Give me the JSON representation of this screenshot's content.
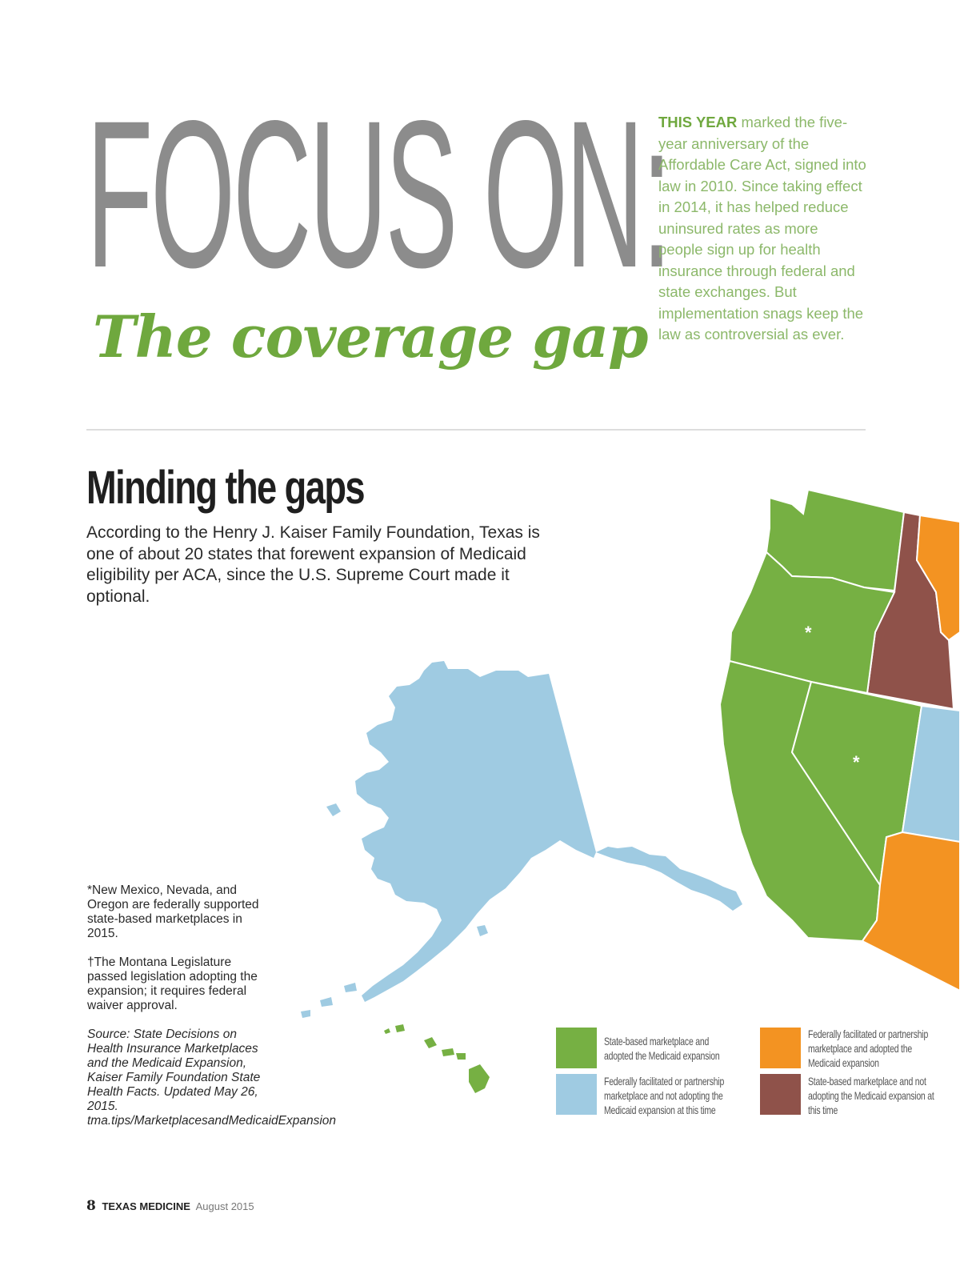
{
  "header": {
    "title": "FOCUS ON:",
    "subtitle": "The coverage gap",
    "intro_lead": "THIS YEAR",
    "intro_text": " marked the five-year anniversary of the Affordable Care Act, signed into law in 2010. Since taking effect in 2014, it has helped reduce uninsured rates as more people sign up for health insurance through federal and state exchanges. But implementation snags keep the law as controversial as ever."
  },
  "section": {
    "heading": "Minding the gaps",
    "body": "According to the Henry J. Kaiser Family Foundation, Texas is one of about 20 states that forewent expansion of Medicaid eligibility per ACA, since the U.S. Supreme Court made it optional."
  },
  "notes": {
    "asterisk_note": "*New Mexico, Nevada, and Oregon are federally supported state-based marketplaces in 2015.",
    "montana_note": "†The Montana Legislature passed legislation adopting the expansion; it requires federal waiver approval.",
    "source": "Source: State Decisions on Health Insurance Marketplaces and the Medicaid Expansion, Kaiser Family Foundation State Health Facts. Updated May 26, 2015. tma.tips/MarketplacesandMedicaidExpansion"
  },
  "legend": [
    {
      "label": "State-based marketplace and adopted the Medicaid expansion",
      "color": "#76b043"
    },
    {
      "label": "Federally facilitated or partnership marketplace and not adopting the Medicaid expansion at this time",
      "color": "#9fcbe2"
    },
    {
      "label": "Federally facilitated or partnership marketplace and adopted the Medicaid expansion",
      "color": "#f39322"
    },
    {
      "label": "State-based marketplace and not adopting the Medicaid expansion at this time",
      "color": "#8f524a"
    }
  ],
  "map": {
    "asterisk_marker": "*",
    "colors": {
      "green": "#76b043",
      "blue": "#9fcbe2",
      "orange": "#f39322",
      "brown": "#8f524a"
    }
  },
  "footer": {
    "page_number": "8",
    "magazine": "TEXAS MEDICINE",
    "date": "August 2015"
  }
}
